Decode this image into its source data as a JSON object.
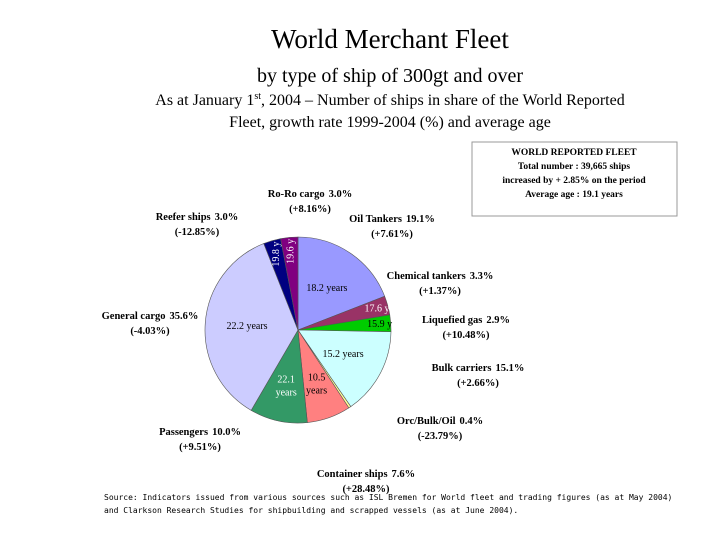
{
  "title": "World Merchant Fleet",
  "subtitle": "by type of ship of 300gt and over",
  "description": {
    "line1": [
      "As at January 1",
      "st",
      ", 2004 – Number of ships in share of the World Reported"
    ],
    "line2": "Fleet, growth rate 1999-2004 (%) and average age"
  },
  "summary_box": [
    "WORLD REPORTED FLEET",
    "Total number : 39,665 ships",
    "increased by + 2.85% on the period",
    "Average age : 19.1 years"
  ],
  "source": [
    "Source: Indicators issued from various sources such as ISL Bremen for World fleet and trading figures (as at May 2004)",
    "and Clarkson Research Studies for shipbuilding and scrapped vessels (as at June 2004)."
  ],
  "chart_data": {
    "type": "pie",
    "categories": [
      "Oil Tankers",
      "Chemical tankers",
      "Liquefied gas",
      "Bulk carriers",
      "Orc/Bulk/Oil",
      "Container ships",
      "Passengers",
      "General cargo",
      "Reefer ships",
      "Ro-Ro cargo"
    ],
    "values": [
      19.1,
      3.3,
      2.9,
      15.1,
      0.4,
      7.6,
      10.0,
      35.6,
      3.0,
      3.0
    ],
    "value_labels": [
      "19.1%",
      "3.3%",
      "2.9%",
      "15.1%",
      "0.4%",
      "7.6%",
      "10.0%",
      "35.6%",
      "3.0%",
      "3.0%"
    ],
    "growth": [
      7.61,
      1.37,
      10.48,
      2.66,
      -23.79,
      28.48,
      9.51,
      -4.03,
      -12.85,
      8.16
    ],
    "growth_labels": [
      "(+7.61%)",
      "(+1.37%)",
      "(+10.48%)",
      "(+2.66%)",
      "(-23.79%)",
      "(+28.48%)",
      "(+9.51%)",
      "(-4.03%)",
      "(-12.85%)",
      "(+8.16%)"
    ],
    "age_labels": [
      [
        "18.2 years"
      ],
      [
        "17.6 y"
      ],
      [
        "15.9 y"
      ],
      [
        "15.2 years"
      ],
      null,
      [
        "10.5",
        "years"
      ],
      [
        "22.1",
        "years"
      ],
      [
        "22.2 years"
      ],
      [
        "19.8 y"
      ],
      [
        "19.6 y"
      ]
    ],
    "colors": [
      "#9999ff",
      "#993366",
      "#00cc00",
      "#ccffff",
      "#ffff99",
      "#ff8080",
      "#339966",
      "#ccccff",
      "#000080",
      "#800080"
    ]
  }
}
